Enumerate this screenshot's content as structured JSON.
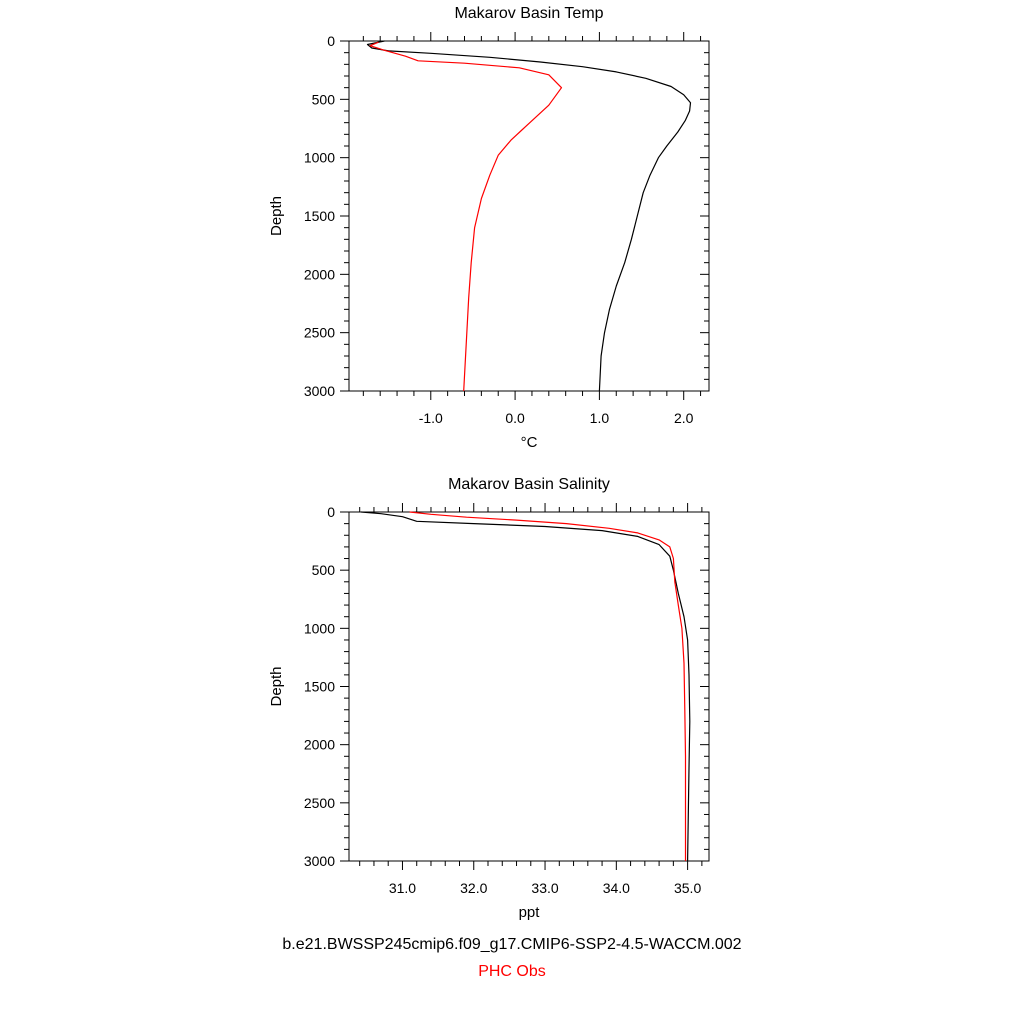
{
  "chart_data": [
    {
      "type": "line",
      "title": "Makarov Basin Temp",
      "xlabel": "°C",
      "ylabel": "Depth",
      "xlim": [
        -1.97,
        2.3
      ],
      "ylim": [
        3000,
        0
      ],
      "x_ticks": [
        {
          "value": -1.0,
          "label": "-1.0"
        },
        {
          "value": 0.0,
          "label": "0.0"
        },
        {
          "value": 1.0,
          "label": "1.0"
        },
        {
          "value": 2.0,
          "label": "2.0"
        }
      ],
      "y_ticks": [
        {
          "value": 0,
          "label": "0"
        },
        {
          "value": 500,
          "label": "500"
        },
        {
          "value": 1000,
          "label": "1000"
        },
        {
          "value": 1500,
          "label": "1500"
        },
        {
          "value": 2000,
          "label": "2000"
        },
        {
          "value": 2500,
          "label": "2500"
        },
        {
          "value": 3000,
          "label": "3000"
        }
      ],
      "grid": false,
      "series": [
        {
          "color": "#000000",
          "points": [
            [
              -1.55,
              0
            ],
            [
              -1.75,
              30
            ],
            [
              -1.7,
              60
            ],
            [
              -1.5,
              85
            ],
            [
              -1.0,
              105
            ],
            [
              -0.3,
              140
            ],
            [
              0.3,
              180
            ],
            [
              0.8,
              220
            ],
            [
              1.2,
              265
            ],
            [
              1.55,
              320
            ],
            [
              1.85,
              390
            ],
            [
              2.0,
              460
            ],
            [
              2.08,
              530
            ],
            [
              2.07,
              600
            ],
            [
              2.02,
              680
            ],
            [
              1.93,
              780
            ],
            [
              1.8,
              900
            ],
            [
              1.7,
              1000
            ],
            [
              1.6,
              1150
            ],
            [
              1.52,
              1300
            ],
            [
              1.45,
              1500
            ],
            [
              1.38,
              1700
            ],
            [
              1.3,
              1900
            ],
            [
              1.2,
              2100
            ],
            [
              1.12,
              2300
            ],
            [
              1.06,
              2500
            ],
            [
              1.02,
              2700
            ],
            [
              1.0,
              3000
            ]
          ]
        },
        {
          "color": "#ff0000",
          "points": [
            [
              -1.62,
              10
            ],
            [
              -1.72,
              40
            ],
            [
              -1.55,
              80
            ],
            [
              -1.3,
              130
            ],
            [
              -1.15,
              170
            ],
            [
              -0.6,
              190
            ],
            [
              0.05,
              230
            ],
            [
              0.4,
              290
            ],
            [
              0.55,
              400
            ],
            [
              0.4,
              550
            ],
            [
              0.1,
              750
            ],
            [
              -0.05,
              850
            ],
            [
              -0.2,
              980
            ],
            [
              -0.3,
              1150
            ],
            [
              -0.4,
              1350
            ],
            [
              -0.48,
              1600
            ],
            [
              -0.52,
              1900
            ],
            [
              -0.55,
              2200
            ],
            [
              -0.58,
              2600
            ],
            [
              -0.61,
              3000
            ]
          ]
        }
      ]
    },
    {
      "type": "line",
      "title": "Makarov Basin Salinity",
      "xlabel": "ppt",
      "ylabel": "Depth",
      "xlim": [
        30.25,
        35.3
      ],
      "ylim": [
        3000,
        0
      ],
      "x_ticks": [
        {
          "value": 31.0,
          "label": "31.0"
        },
        {
          "value": 32.0,
          "label": "32.0"
        },
        {
          "value": 33.0,
          "label": "33.0"
        },
        {
          "value": 34.0,
          "label": "34.0"
        },
        {
          "value": 35.0,
          "label": "35.0"
        }
      ],
      "y_ticks": [
        {
          "value": 0,
          "label": "0"
        },
        {
          "value": 500,
          "label": "500"
        },
        {
          "value": 1000,
          "label": "1000"
        },
        {
          "value": 1500,
          "label": "1500"
        },
        {
          "value": 2000,
          "label": "2000"
        },
        {
          "value": 2500,
          "label": "2500"
        },
        {
          "value": 3000,
          "label": "3000"
        }
      ],
      "grid": false,
      "series": [
        {
          "color": "#000000",
          "points": [
            [
              30.42,
              0
            ],
            [
              30.7,
              15
            ],
            [
              31.0,
              40
            ],
            [
              31.2,
              80
            ],
            [
              32.0,
              100
            ],
            [
              33.0,
              125
            ],
            [
              33.8,
              160
            ],
            [
              34.3,
              210
            ],
            [
              34.6,
              280
            ],
            [
              34.75,
              380
            ],
            [
              34.8,
              500
            ],
            [
              34.87,
              700
            ],
            [
              34.95,
              900
            ],
            [
              35.0,
              1100
            ],
            [
              35.02,
              1400
            ],
            [
              35.03,
              1800
            ],
            [
              35.02,
              2200
            ],
            [
              35.01,
              2600
            ],
            [
              35.0,
              3000
            ]
          ]
        },
        {
          "color": "#ff0000",
          "points": [
            [
              31.1,
              0
            ],
            [
              31.4,
              20
            ],
            [
              31.9,
              45
            ],
            [
              32.6,
              70
            ],
            [
              33.3,
              100
            ],
            [
              33.9,
              140
            ],
            [
              34.3,
              180
            ],
            [
              34.6,
              240
            ],
            [
              34.75,
              300
            ],
            [
              34.8,
              400
            ],
            [
              34.82,
              600
            ],
            [
              34.87,
              800
            ],
            [
              34.92,
              1000
            ],
            [
              34.95,
              1300
            ],
            [
              34.96,
              1700
            ],
            [
              34.97,
              2100
            ],
            [
              34.97,
              2500
            ],
            [
              34.97,
              3000
            ]
          ]
        }
      ]
    }
  ],
  "captions": {
    "model": "b.e21.BWSSP245cmip6.f09_g17.CMIP6-SSP2-4.5-WACCM.002",
    "obs": "PHC Obs",
    "model_color": "#000000",
    "obs_color": "#ff0000"
  }
}
